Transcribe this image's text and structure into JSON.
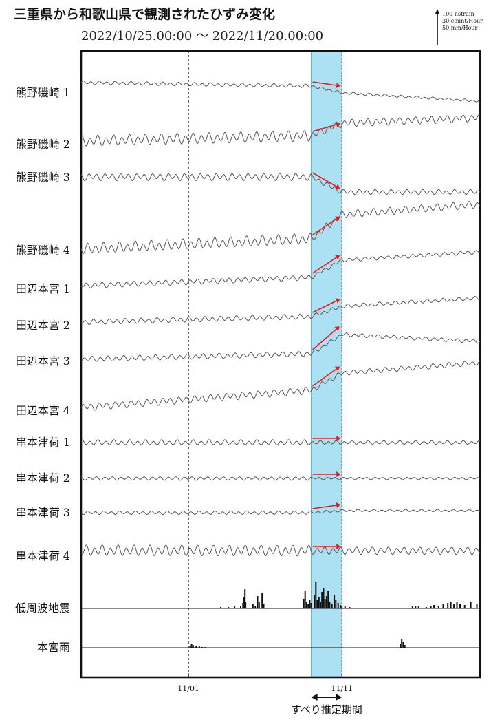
{
  "chart_data": {
    "type": "line",
    "title": "三重県から和歌山県で観測されたひずみ変化",
    "period_text": "2022/10/25.00:00  ～  2022/11/20.00:00",
    "scale_labels": [
      "100 nstrain",
      "30 count/Hour",
      "50 mm/Hour"
    ],
    "x_range": [
      "2022-10-25",
      "2022-11-20"
    ],
    "x_ticks": [
      {
        "date": "2022-11-01",
        "label": "11/01"
      },
      {
        "date": "2022-11-11",
        "label": "11/11"
      }
    ],
    "slip_period": {
      "start": "2022-11-09",
      "end": "2022-11-11",
      "label": "すべり推定期間"
    },
    "y_unit": "nstrain",
    "series": [
      {
        "name": "熊野磯崎 1",
        "wiggle": 2,
        "before": [
          [
            0,
            0
          ],
          [
            15,
            -5
          ]
        ],
        "step": -10,
        "after": [
          [
            17,
            0
          ],
          [
            26,
            -12
          ]
        ],
        "arrow": [
          -5,
          -10
        ]
      },
      {
        "name": "熊野磯崎 2",
        "wiggle": 6,
        "before": [
          [
            0,
            0
          ],
          [
            15,
            8
          ]
        ],
        "step": 18,
        "after": [
          [
            17,
            0
          ],
          [
            26,
            8
          ]
        ],
        "arrow": [
          8,
          18
        ]
      },
      {
        "name": "熊野磯崎 3",
        "wiggle": 4,
        "before": [
          [
            0,
            0
          ],
          [
            15,
            0
          ]
        ],
        "step": -22,
        "after": [
          [
            17,
            0
          ],
          [
            26,
            0
          ]
        ],
        "arrow": [
          0,
          -20
        ]
      },
      {
        "name": "熊野磯崎 4",
        "wiggle": 6,
        "before": [
          [
            0,
            0
          ],
          [
            15,
            15
          ]
        ],
        "step": 35,
        "after": [
          [
            17,
            0
          ],
          [
            26,
            15
          ]
        ],
        "arrow": [
          15,
          38
        ]
      },
      {
        "name": "田辺本宮 1",
        "wiggle": 3,
        "before": [
          [
            0,
            0
          ],
          [
            15,
            12
          ]
        ],
        "step": 25,
        "after": [
          [
            17,
            0
          ],
          [
            26,
            12
          ]
        ],
        "arrow": [
          12,
          35
        ]
      },
      {
        "name": "田辺本宮 2",
        "wiggle": 3,
        "before": [
          [
            0,
            0
          ],
          [
            15,
            8
          ]
        ],
        "step": 15,
        "after": [
          [
            17,
            0
          ],
          [
            26,
            12
          ]
        ],
        "arrow": [
          8,
          25
        ]
      },
      {
        "name": "田辺本宮 3",
        "wiggle": 3,
        "before": [
          [
            0,
            0
          ],
          [
            15,
            8
          ]
        ],
        "step": 28,
        "after": [
          [
            17,
            0
          ],
          [
            26,
            -10
          ]
        ],
        "arrow": [
          8,
          38
        ]
      },
      {
        "name": "田辺本宮 4",
        "wiggle": 4,
        "before": [
          [
            0,
            0
          ],
          [
            15,
            25
          ]
        ],
        "step": 25,
        "after": [
          [
            17,
            0
          ],
          [
            26,
            15
          ]
        ],
        "arrow": [
          25,
          50
        ]
      },
      {
        "name": "串本津荷 1",
        "wiggle": 3,
        "before": [
          [
            0,
            0
          ],
          [
            15,
            0
          ]
        ],
        "step": 0,
        "after": [
          [
            17,
            0
          ],
          [
            26,
            0
          ]
        ],
        "arrow": [
          0,
          0
        ]
      },
      {
        "name": "串本津荷 2",
        "wiggle": 2,
        "before": [
          [
            0,
            0
          ],
          [
            15,
            0
          ]
        ],
        "step": 0,
        "after": [
          [
            17,
            0
          ],
          [
            26,
            0
          ]
        ],
        "arrow": [
          0,
          0
        ]
      },
      {
        "name": "串本津荷 3",
        "wiggle": 2,
        "before": [
          [
            0,
            0
          ],
          [
            15,
            0
          ]
        ],
        "step": 3,
        "after": [
          [
            17,
            0
          ],
          [
            26,
            0
          ]
        ],
        "arrow": [
          0,
          5
        ]
      },
      {
        "name": "串本津荷 4",
        "wiggle": 6,
        "before": [
          [
            0,
            0
          ],
          [
            15,
            0
          ]
        ],
        "step": 0,
        "after": [
          [
            17,
            0
          ],
          [
            26,
            0
          ]
        ],
        "arrow": [
          0,
          0
        ]
      }
    ],
    "bar_series": [
      {
        "name": "低周波地震",
        "unit": "count/Hour",
        "bars": [
          [
            9.1,
            2
          ],
          [
            9.6,
            2
          ],
          [
            10.0,
            3
          ],
          [
            10.4,
            4
          ],
          [
            10.55,
            8
          ],
          [
            10.6,
            16
          ],
          [
            10.68,
            28
          ],
          [
            10.72,
            9
          ],
          [
            11.2,
            6
          ],
          [
            11.35,
            4
          ],
          [
            11.5,
            18
          ],
          [
            11.6,
            9
          ],
          [
            11.8,
            22
          ],
          [
            11.9,
            7
          ],
          [
            14.5,
            14
          ],
          [
            14.6,
            26
          ],
          [
            14.7,
            10
          ],
          [
            14.8,
            6
          ],
          [
            14.9,
            12
          ],
          [
            15.0,
            8
          ],
          [
            15.2,
            20
          ],
          [
            15.3,
            38
          ],
          [
            15.4,
            12
          ],
          [
            15.5,
            16
          ],
          [
            15.6,
            9
          ],
          [
            15.7,
            24
          ],
          [
            15.8,
            30
          ],
          [
            15.9,
            14
          ],
          [
            16.0,
            18
          ],
          [
            16.1,
            26
          ],
          [
            16.2,
            10
          ],
          [
            16.35,
            7
          ],
          [
            16.5,
            20
          ],
          [
            16.6,
            12
          ],
          [
            16.75,
            8
          ],
          [
            16.9,
            5
          ],
          [
            17.0,
            3
          ],
          [
            17.2,
            4
          ],
          [
            17.5,
            2
          ],
          [
            21.6,
            3
          ],
          [
            21.8,
            4
          ],
          [
            22.0,
            3
          ],
          [
            22.5,
            2
          ],
          [
            22.8,
            3
          ],
          [
            23.0,
            5
          ],
          [
            23.3,
            4
          ],
          [
            23.6,
            6
          ],
          [
            23.9,
            8
          ],
          [
            24.1,
            10
          ],
          [
            24.3,
            7
          ],
          [
            24.5,
            9
          ],
          [
            24.7,
            6
          ],
          [
            25.0,
            5
          ],
          [
            25.4,
            10
          ],
          [
            25.8,
            6
          ]
        ]
      },
      {
        "name": "本宮雨",
        "unit": "mm/Hour",
        "bars": [
          [
            7.1,
            3
          ],
          [
            7.2,
            5
          ],
          [
            7.3,
            4
          ],
          [
            7.5,
            2
          ],
          [
            7.7,
            2
          ],
          [
            7.9,
            1
          ],
          [
            8.1,
            1
          ],
          [
            20.8,
            6
          ],
          [
            20.9,
            12
          ],
          [
            21.0,
            8
          ],
          [
            21.1,
            4
          ]
        ]
      }
    ]
  }
}
